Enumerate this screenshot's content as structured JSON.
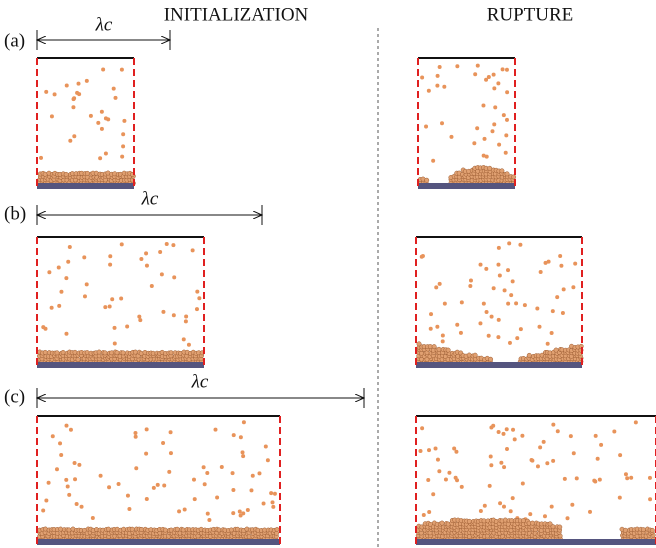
{
  "headers": {
    "left": "INITIALIZATION",
    "right": "RUPTURE"
  },
  "panels": [
    {
      "label": "(a)",
      "wavelength": "λc"
    },
    {
      "label": "(b)",
      "wavelength": "λc"
    },
    {
      "label": "(c)",
      "wavelength": "λc"
    }
  ]
}
